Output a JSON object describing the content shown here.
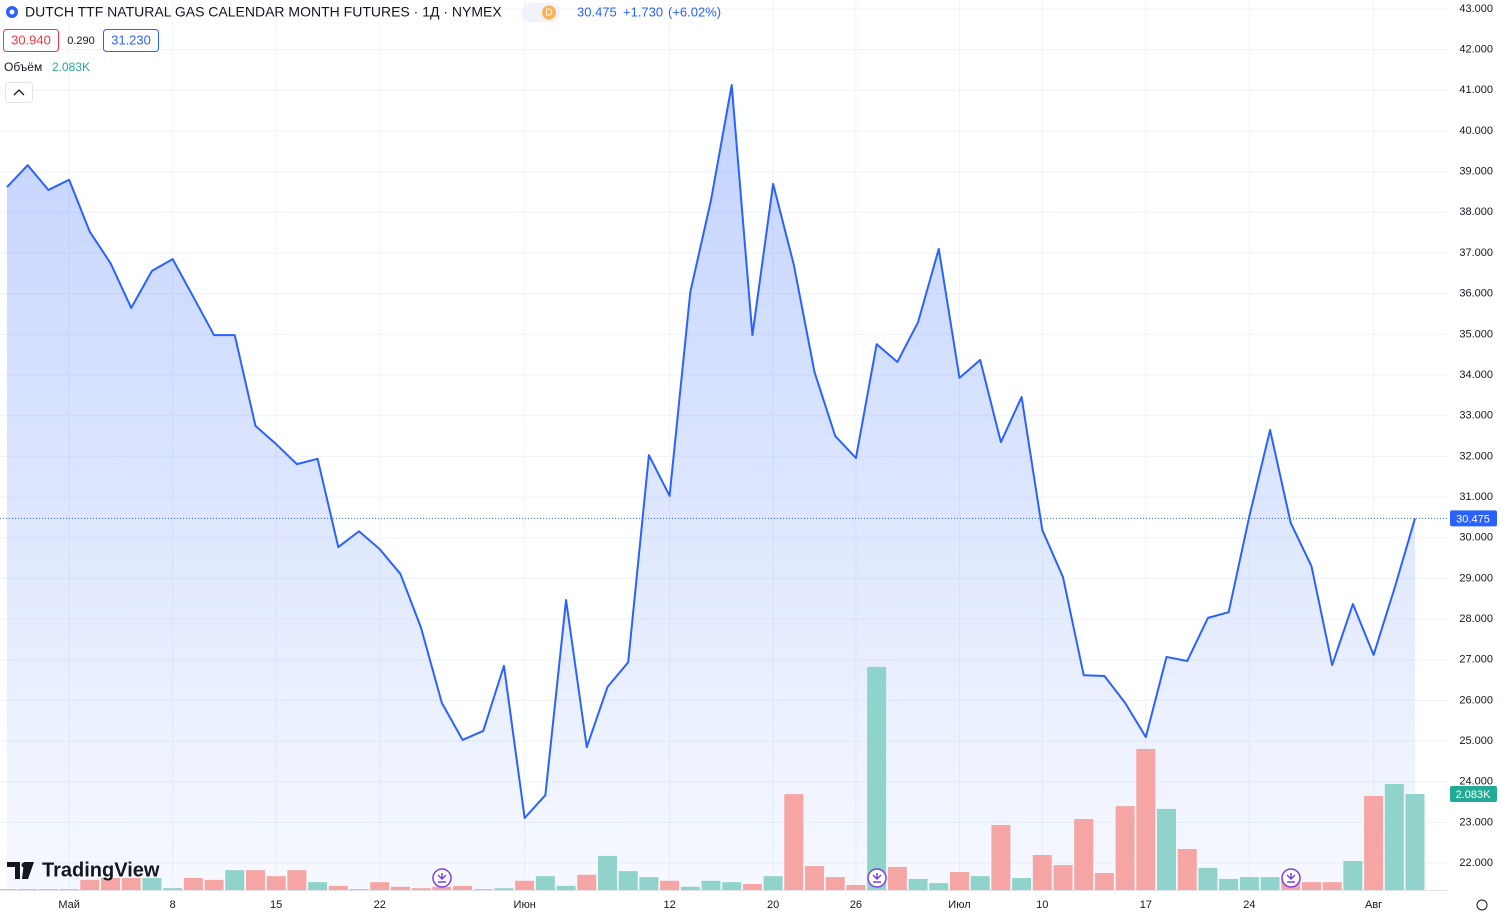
{
  "chart_data": {
    "type": "area",
    "title": "DUTCH TTF NATURAL GAS CALENDAR MONTH FUTURES · 1Д · NYMEX",
    "badge": "D",
    "change": "+1.730",
    "change_pct": "(+6.02%)",
    "bid": "30.940",
    "spread": "0.290",
    "ask": "31.230",
    "volume_title": "Объём",
    "volume_label": "2.083K",
    "logo": "TradingView",
    "color": "#2962ff",
    "up_color": "#8fd3ca",
    "down_color": "#f6a5a5",
    "categories": [
      null,
      null,
      null,
      "Май",
      null,
      null,
      null,
      null,
      "8",
      null,
      null,
      null,
      null,
      "15",
      null,
      null,
      null,
      null,
      "22",
      null,
      null,
      null,
      null,
      null,
      null,
      "Июн",
      null,
      null,
      null,
      null,
      null,
      null,
      "12",
      null,
      null,
      null,
      null,
      "20",
      null,
      null,
      null,
      "26",
      null,
      null,
      null,
      null,
      "Июл",
      null,
      null,
      null,
      "10",
      null,
      null,
      null,
      null,
      "17",
      null,
      null,
      null,
      null,
      "24",
      null,
      null,
      null,
      null,
      null,
      "Авг",
      null,
      null
    ],
    "values": [
      38.62,
      39.16,
      38.55,
      38.8,
      37.52,
      36.75,
      35.65,
      36.56,
      36.85,
      35.92,
      34.98,
      34.98,
      32.75,
      32.3,
      31.81,
      31.94,
      29.77,
      30.16,
      29.72,
      29.11,
      27.78,
      25.94,
      25.03,
      25.25,
      26.85,
      23.11,
      23.67,
      28.47,
      24.85,
      26.33,
      26.94,
      32.03,
      31.03,
      36.04,
      38.3,
      41.13,
      34.98,
      38.7,
      36.71,
      34.07,
      32.5,
      31.96,
      34.76,
      34.32,
      35.3,
      37.1,
      33.93,
      34.37,
      32.35,
      33.46,
      30.19,
      29.03,
      26.62,
      26.6,
      25.94,
      25.1,
      27.07,
      26.97,
      28.03,
      28.17,
      30.53,
      32.65,
      30.36,
      29.3,
      26.87,
      28.37,
      27.12,
      28.74,
      30.475
    ],
    "volume": [
      0.02,
      0.02,
      0.02,
      0.02,
      0.22,
      0.26,
      0.26,
      0.26,
      0.04,
      0.26,
      0.22,
      0.43,
      0.43,
      0.3,
      0.43,
      0.17,
      0.09,
      0.02,
      0.17,
      0.07,
      0.04,
      0.07,
      0.09,
      0.02,
      0.04,
      0.2,
      0.3,
      0.09,
      0.33,
      0.74,
      0.41,
      0.28,
      0.2,
      0.07,
      0.2,
      0.17,
      0.13,
      0.3,
      2.08,
      0.52,
      0.28,
      0.11,
      4.84,
      0.5,
      0.24,
      0.15,
      0.39,
      0.3,
      1.41,
      0.26,
      0.76,
      0.54,
      1.54,
      0.37,
      1.82,
      3.06,
      1.76,
      0.89,
      0.48,
      0.24,
      0.28,
      0.28,
      0.2,
      0.17,
      0.17,
      0.63,
      2.04,
      2.3,
      2.083
    ],
    "ylim": [
      21.34,
      43.22
    ],
    "vlim": [
      0,
      19.31
    ],
    "yticks": [
      {
        "value": 22,
        "label": "22.000"
      },
      {
        "value": 23,
        "label": "23.000"
      },
      {
        "value": 24,
        "label": "24.000"
      },
      {
        "value": 25,
        "label": "25.000"
      },
      {
        "value": 26,
        "label": "26.000"
      },
      {
        "value": 27,
        "label": "27.000"
      },
      {
        "value": 28,
        "label": "28.000"
      },
      {
        "value": 29,
        "label": "29.000"
      },
      {
        "value": 30,
        "label": "30.000"
      },
      {
        "value": 31,
        "label": "31.000"
      },
      {
        "value": 32,
        "label": "32.000"
      },
      {
        "value": 33,
        "label": "33.000"
      },
      {
        "value": 34,
        "label": "34.000"
      },
      {
        "value": 35,
        "label": "35.000"
      },
      {
        "value": 36,
        "label": "36.000"
      },
      {
        "value": 37,
        "label": "37.000"
      },
      {
        "value": 38,
        "label": "38.000"
      },
      {
        "value": 39,
        "label": "39.000"
      },
      {
        "value": 40,
        "label": "40.000"
      },
      {
        "value": 41,
        "label": "41.000"
      },
      {
        "value": 42,
        "label": "42.000"
      },
      {
        "value": 43,
        "label": "43.000"
      }
    ],
    "grid": true
  }
}
